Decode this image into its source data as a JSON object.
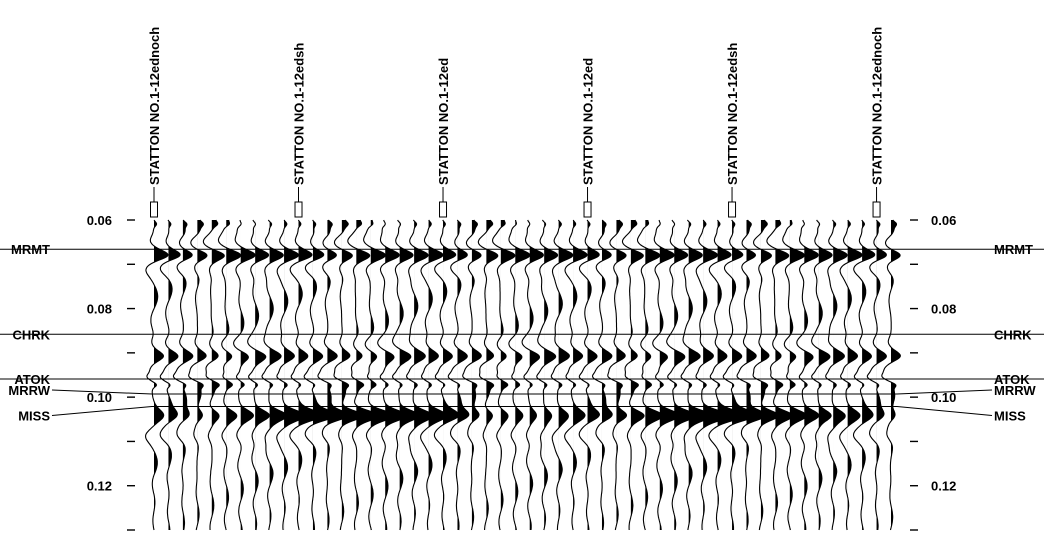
{
  "chart_data": {
    "type": "seismic_wiggle",
    "title": "",
    "xlabel": "",
    "ylabel": "",
    "time_axis": {
      "ylim": [
        0.06,
        0.13
      ],
      "major_ticks": [
        0.06,
        0.08,
        0.1,
        0.12
      ],
      "major_tick_labels": [
        "0.06",
        "0.08",
        "0.10",
        "0.12"
      ],
      "minor_ticks": [
        0.07,
        0.09,
        0.11,
        0.13
      ],
      "grid": false
    },
    "trace_count": 52,
    "wells": [
      {
        "label": "STATTON NO.1-12ednoch",
        "trace": 0
      },
      {
        "label": "STATTON NO.1-12edsh",
        "trace": 10
      },
      {
        "label": "STATTON NO.1-12ed",
        "trace": 20
      },
      {
        "label": "STATTON NO.1-12ed",
        "trace": 30
      },
      {
        "label": "STATTON NO.1-12edsh",
        "trace": 40
      },
      {
        "label": "STATTON NO.1-12ednoch",
        "trace": 50
      }
    ],
    "horizons": [
      {
        "name": "MRMT",
        "time": 0.0666
      },
      {
        "name": "CHRK",
        "time": 0.0858
      },
      {
        "name": "ATOK",
        "time": 0.0959
      },
      {
        "name": "MRRW",
        "time": 0.0993
      },
      {
        "name": "MISS",
        "time": 0.1021
      }
    ]
  }
}
